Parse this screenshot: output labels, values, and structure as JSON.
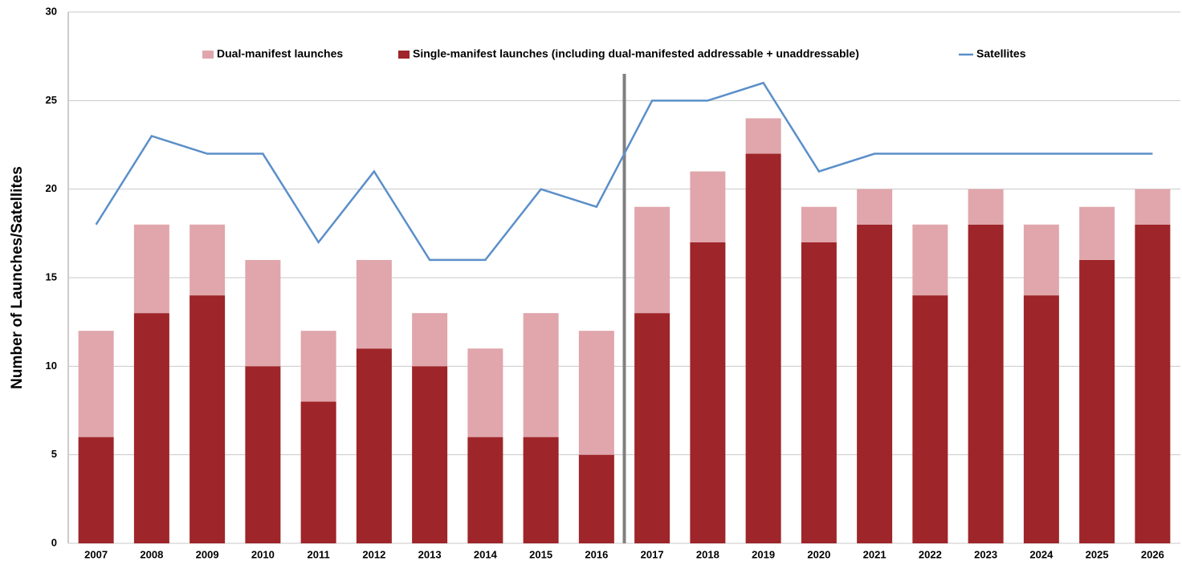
{
  "chart_data": {
    "type": "bar",
    "stacked": true,
    "ylabel": "Number of Launches/Satellites",
    "categories": [
      "2007",
      "2008",
      "2009",
      "2010",
      "2011",
      "2012",
      "2013",
      "2014",
      "2015",
      "2016",
      "2017",
      "2018",
      "2019",
      "2020",
      "2021",
      "2022",
      "2023",
      "2024",
      "2025",
      "2026"
    ],
    "series": [
      {
        "name": "Dual-manifest launches",
        "color": "#e0a6ab",
        "values": [
          6,
          5,
          4,
          6,
          4,
          5,
          3,
          5,
          7,
          7,
          6,
          4,
          2,
          2,
          2,
          4,
          2,
          4,
          3,
          2
        ]
      },
      {
        "name": "Single-manifest launches (including dual-manifested addressable + unaddressable)",
        "color": "#9e2529",
        "values": [
          6,
          13,
          14,
          10,
          8,
          11,
          10,
          6,
          6,
          5,
          13,
          17,
          22,
          17,
          18,
          14,
          18,
          14,
          16,
          18
        ]
      },
      {
        "name": "Satellites",
        "type": "line",
        "color": "#5b8fc9",
        "values": [
          18,
          23,
          22,
          22,
          17,
          21,
          16,
          16,
          20,
          19,
          25,
          25,
          26,
          21,
          22,
          22,
          22,
          22,
          22,
          22
        ]
      }
    ],
    "ylim": [
      0,
      30
    ],
    "yticks": [
      0,
      5,
      10,
      15,
      20,
      25,
      30
    ],
    "grid": true,
    "legend": "top"
  }
}
